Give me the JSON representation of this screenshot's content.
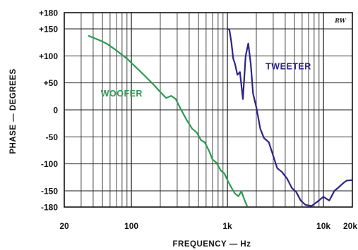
{
  "chart_data": {
    "type": "line",
    "xlabel": "FREQUENCY — Hz",
    "ylabel": "PHASE — DEGREES",
    "xscale": "log",
    "xlim": [
      20,
      20000
    ],
    "ylim": [
      -180,
      180
    ],
    "grid": true,
    "x_ticks": [
      {
        "value": 20,
        "label": "20"
      },
      {
        "value": 100,
        "label": "100"
      },
      {
        "value": 1000,
        "label": "1k"
      },
      {
        "value": 10000,
        "label": "10k"
      },
      {
        "value": 20000,
        "label": "20k"
      }
    ],
    "y_ticks": [
      {
        "value": 180,
        "label": "+180"
      },
      {
        "value": 150,
        "label": "+150"
      },
      {
        "value": 100,
        "label": "+100"
      },
      {
        "value": 50,
        "label": "+50"
      },
      {
        "value": 0,
        "label": "0"
      },
      {
        "value": -50,
        "label": "-50"
      },
      {
        "value": -100,
        "label": "-100"
      },
      {
        "value": -150,
        "label": "-150"
      },
      {
        "value": -180,
        "label": "-180"
      }
    ],
    "series": [
      {
        "name": "WOOFER",
        "color": "#2e9a52",
        "label_at": [
          48,
          25
        ],
        "x": [
          36,
          45,
          55,
          70,
          90,
          110,
          140,
          170,
          200,
          230,
          260,
          290,
          330,
          380,
          430,
          480,
          530,
          580,
          640,
          700,
          770,
          850,
          930,
          1000,
          1100,
          1200,
          1300,
          1400,
          1500,
          1600
        ],
        "y": [
          137,
          130,
          123,
          110,
          95,
          80,
          62,
          47,
          33,
          22,
          26,
          20,
          0,
          -20,
          -35,
          -42,
          -56,
          -60,
          -75,
          -92,
          -98,
          -112,
          -118,
          -130,
          -144,
          -155,
          -160,
          -151,
          -166,
          -178
        ]
      },
      {
        "name": "TWEETER",
        "color": "#2d2588",
        "label_at": [
          2500,
          75
        ],
        "x": [
          1000,
          1050,
          1100,
          1150,
          1200,
          1270,
          1350,
          1450,
          1550,
          1650,
          1750,
          1850,
          2000,
          2200,
          2400,
          2700,
          3000,
          3300,
          3700,
          4200,
          4700,
          5200,
          5800,
          6500,
          7500,
          8500,
          10000,
          11500,
          13000,
          14500,
          16000,
          17500,
          20000
        ],
        "y": [
          150,
          148,
          125,
          95,
          85,
          65,
          70,
          20,
          100,
          123,
          85,
          30,
          5,
          -35,
          -52,
          -60,
          -85,
          -108,
          -115,
          -128,
          -145,
          -152,
          -168,
          -176,
          -178,
          -171,
          -161,
          -168,
          -150,
          -143,
          -136,
          -131,
          -130
        ]
      }
    ]
  },
  "logo_text": "RW"
}
